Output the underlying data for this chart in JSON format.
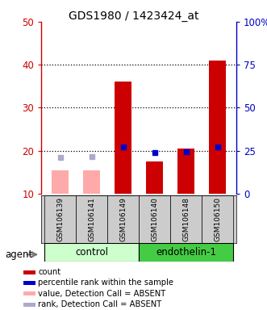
{
  "title": "GDS1980 / 1423424_at",
  "samples": [
    "GSM106139",
    "GSM106141",
    "GSM106149",
    "GSM106140",
    "GSM106148",
    "GSM106150"
  ],
  "bar_values": [
    15.5,
    15.5,
    36.0,
    17.5,
    20.5,
    41.0
  ],
  "bar_absent": [
    true,
    true,
    false,
    false,
    false,
    false
  ],
  "rank_values": [
    21.0,
    21.5,
    27.0,
    24.0,
    24.5,
    27.0
  ],
  "rank_absent": [
    true,
    true,
    false,
    false,
    false,
    false
  ],
  "ylim_left": [
    10,
    50
  ],
  "ylim_right": [
    0,
    100
  ],
  "yticks_left": [
    10,
    20,
    30,
    40,
    50
  ],
  "yticks_right": [
    0,
    25,
    50,
    75,
    100
  ],
  "ytick_labels_right": [
    "0",
    "25",
    "50",
    "75",
    "100%"
  ],
  "bar_color_present": "#cc0000",
  "bar_color_absent": "#ffaaaa",
  "rank_color_present": "#0000cc",
  "rank_color_absent": "#aaaacc",
  "bar_width": 0.55,
  "left_yaxis_color": "#cc0000",
  "right_yaxis_color": "#0000bb",
  "control_color": "#ccffcc",
  "endothelin_color": "#44cc44",
  "sample_bg_color": "#cccccc",
  "agent_label": "agent",
  "legend_items": [
    {
      "label": "count",
      "color": "#cc0000"
    },
    {
      "label": "percentile rank within the sample",
      "color": "#0000cc"
    },
    {
      "label": "value, Detection Call = ABSENT",
      "color": "#ffaaaa"
    },
    {
      "label": "rank, Detection Call = ABSENT",
      "color": "#aaaacc"
    }
  ]
}
